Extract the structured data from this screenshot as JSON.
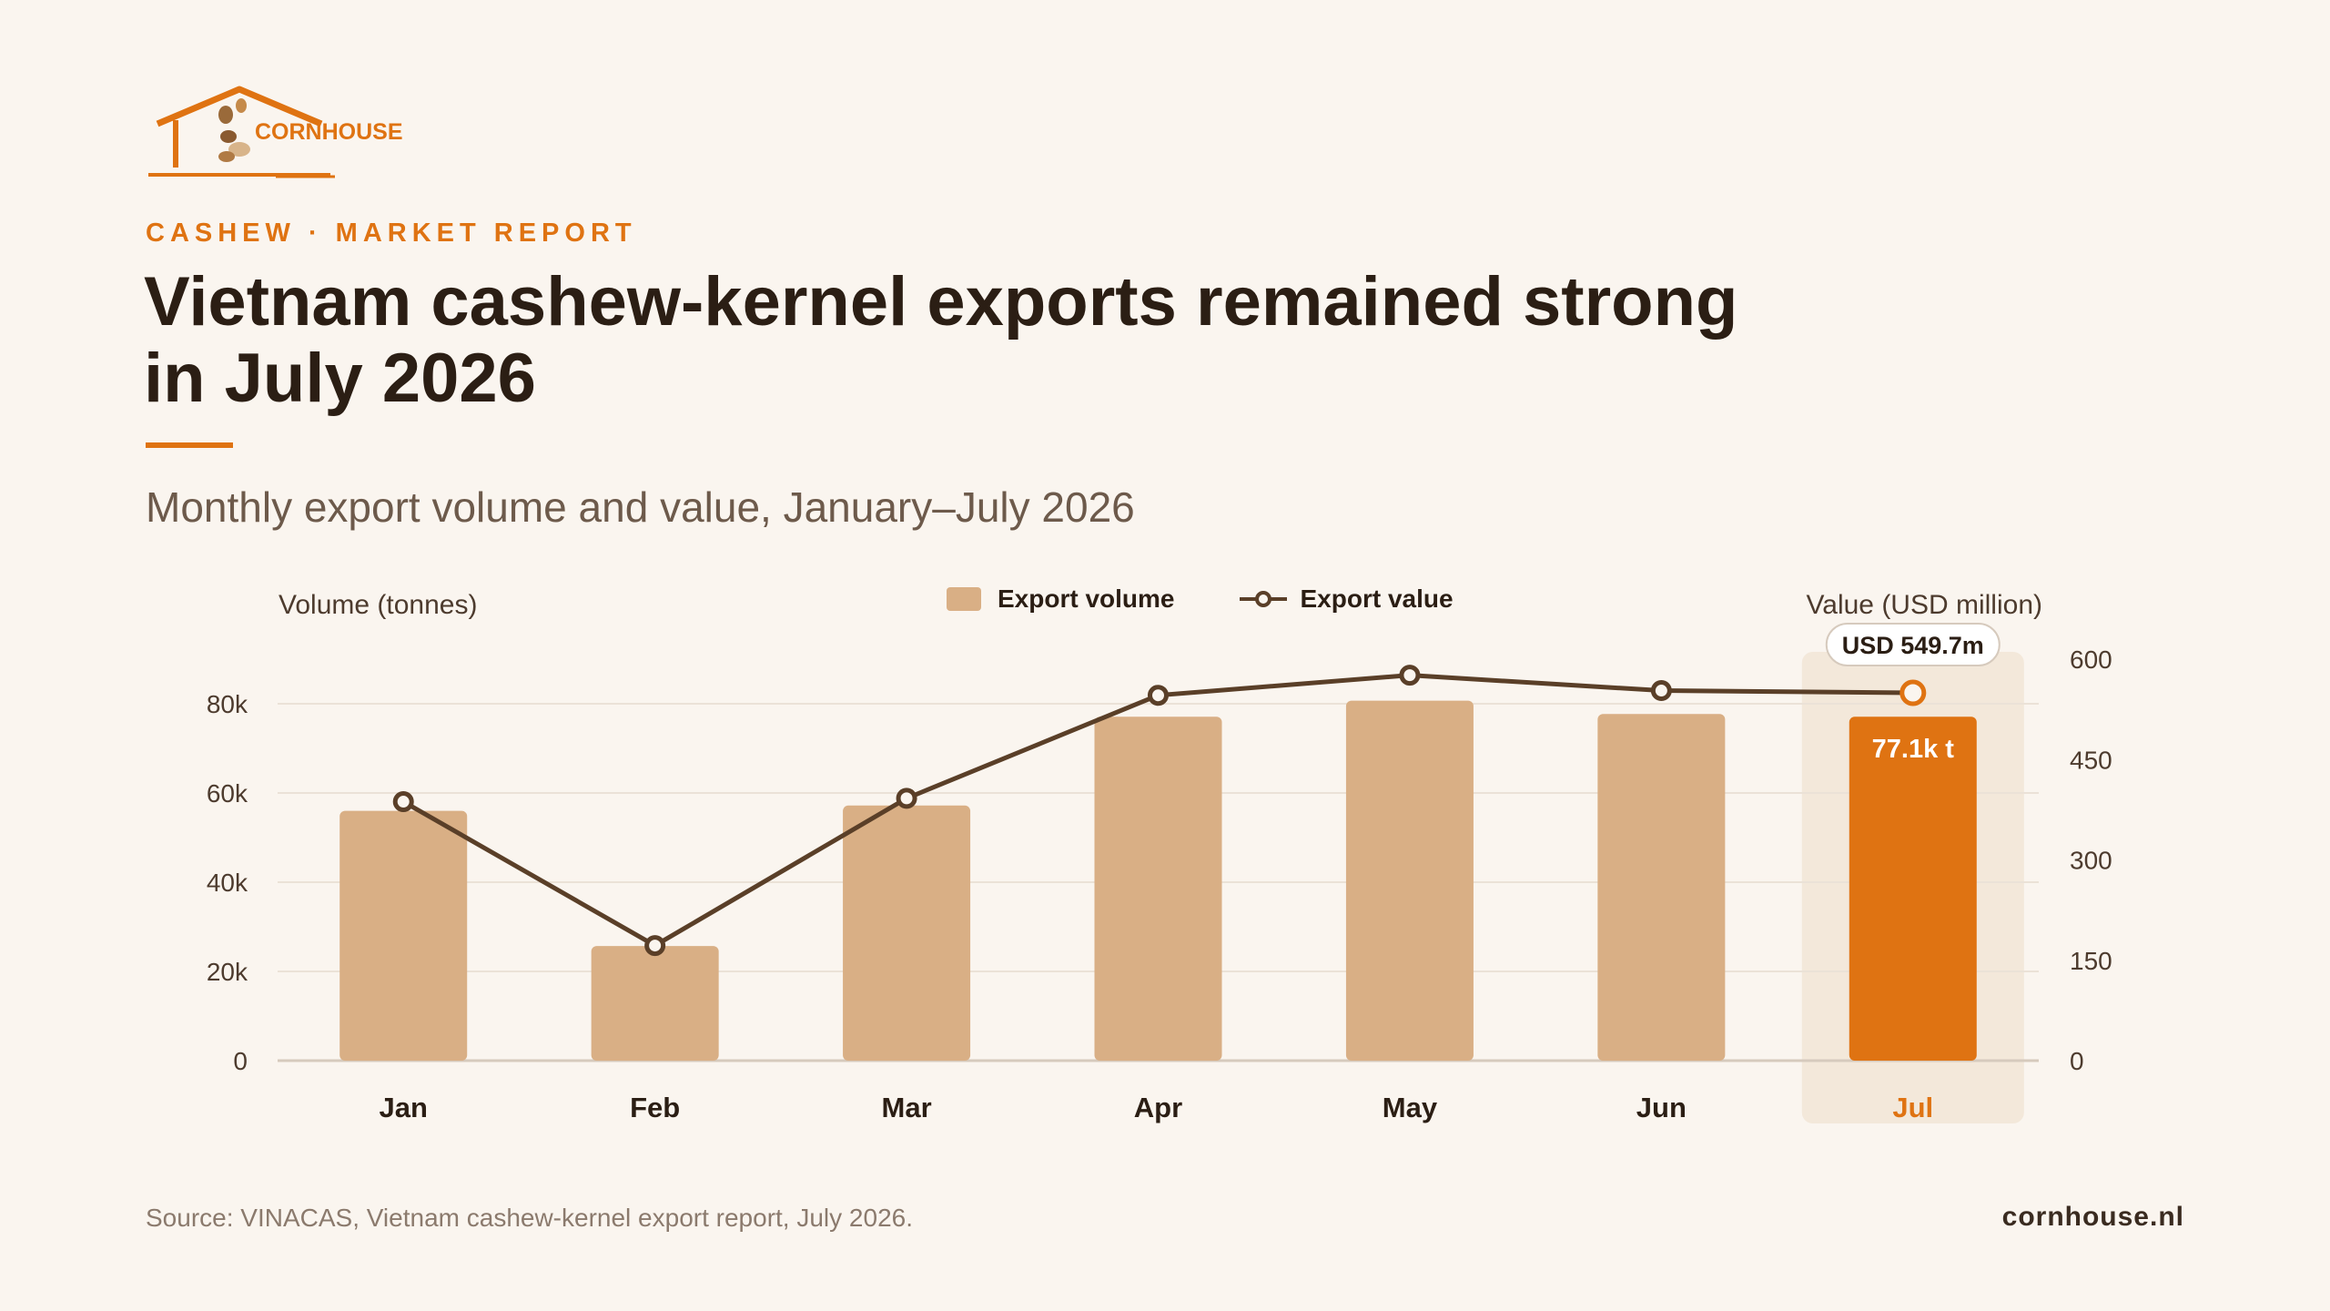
{
  "brand": {
    "logo_text": "CORNHOUSE",
    "website": "cornhouse.nl"
  },
  "header": {
    "eyebrow": "CASHEW · MARKET REPORT",
    "title_line1": "Vietnam cashew-kernel exports remained strong",
    "title_line2": "in July 2026",
    "subtitle": "Monthly export volume and value, January–July 2026"
  },
  "footer": {
    "source": "Source: VINACAS, Vietnam cashew-kernel export report, July 2026."
  },
  "colors": {
    "background": "#faf5ef",
    "accent": "#df7312",
    "bar": "#d9af85",
    "line": "#5a3f28",
    "highlight_band": "#f3e8da"
  },
  "chart_data": {
    "type": "bar",
    "categories": [
      "Jan",
      "Feb",
      "Mar",
      "Apr",
      "May",
      "Jun",
      "Jul"
    ],
    "highlight_category": "Jul",
    "series": [
      {
        "name": "Export volume",
        "type": "bar",
        "axis": "left",
        "values": [
          56000,
          25700,
          57200,
          77100,
          80700,
          77700,
          77100
        ]
      },
      {
        "name": "Export value",
        "type": "line",
        "axis": "right",
        "values": [
          387,
          172,
          392,
          546,
          576,
          553,
          549.7
        ]
      }
    ],
    "ylabel": "Volume (tonnes)",
    "ylabel_right": "Value (USD million)",
    "ylim": [
      0,
      80000
    ],
    "ylim_right": [
      0,
      600
    ],
    "yticks": [
      "0",
      "20k",
      "40k",
      "60k",
      "80k"
    ],
    "yticks_right": [
      "0",
      "150",
      "300",
      "450",
      "600"
    ],
    "annotations": {
      "bar_label": "77.1k t",
      "value_callout": "USD 549.7m"
    },
    "legend": {
      "position": "top-center"
    },
    "grid": true
  }
}
